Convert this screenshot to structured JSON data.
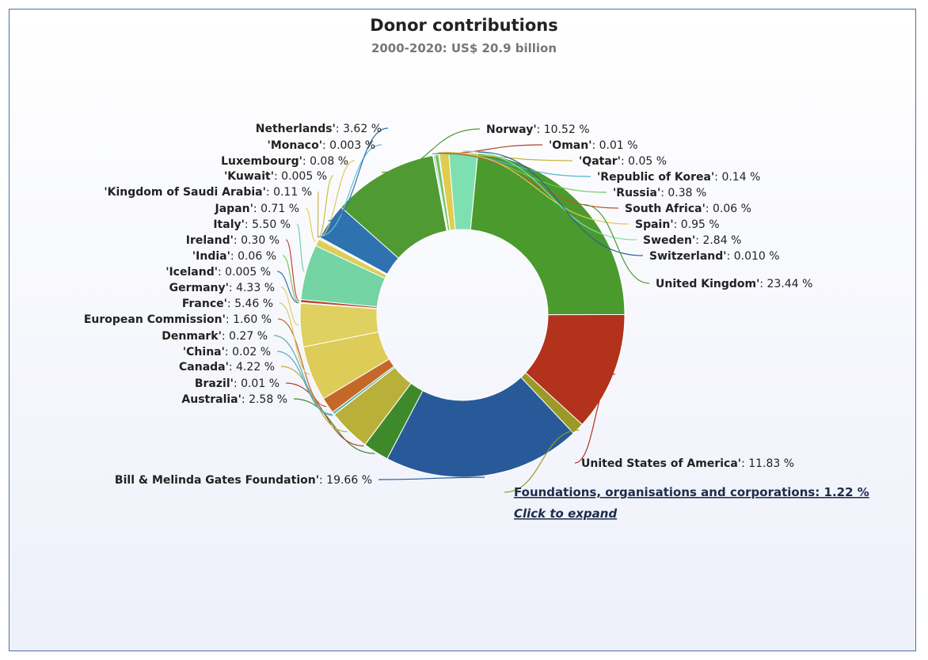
{
  "chart_data": {
    "type": "pie",
    "variant": "donut",
    "title": "Donor contributions",
    "subtitle": "2000-2020: US$ 20.9 billion",
    "unit": "%",
    "slices": [
      {
        "name": "Norway'",
        "value": 10.52,
        "value_text": "10.52 %",
        "color": "#4f9a32"
      },
      {
        "name": "'Oman'",
        "value": 0.01,
        "value_text": "0.01 %",
        "color": "#b5402a"
      },
      {
        "name": "'Qatar'",
        "value": 0.05,
        "value_text": "0.05 %",
        "color": "#c7b440"
      },
      {
        "name": "'Republic of Korea'",
        "value": 0.14,
        "value_text": "0.14 %",
        "color": "#5fb1cf"
      },
      {
        "name": "'Russia'",
        "value": 0.38,
        "value_text": "0.38 %",
        "color": "#70c560"
      },
      {
        "name": "South Africa'",
        "value": 0.06,
        "value_text": "0.06 %",
        "color": "#c2502e"
      },
      {
        "name": "Spain'",
        "value": 0.95,
        "value_text": "0.95 %",
        "color": "#e0cc50"
      },
      {
        "name": "Sweden'",
        "value": 2.84,
        "value_text": "2.84 %",
        "color": "#7ee0b0"
      },
      {
        "name": "Switzerland'",
        "value": 0.01,
        "value_text": "0.010 %",
        "color": "#2f5f9a"
      },
      {
        "name": "United Kingdom'",
        "value": 23.44,
        "value_text": "23.44 %",
        "color": "#4a9a2e"
      },
      {
        "name": "United States of America'",
        "value": 11.83,
        "value_text": "11.83 %",
        "color": "#b2321c"
      },
      {
        "name": "Foundations, organisations and corporations",
        "value": 1.22,
        "value_text": "1.22 %",
        "color": "#9a9a28"
      },
      {
        "name": "Bill & Melinda Gates Foundation'",
        "value": 19.66,
        "value_text": "19.66 %",
        "color": "#285a9a"
      },
      {
        "name": "Australia'",
        "value": 2.58,
        "value_text": "2.58 %",
        "color": "#3e8a2a"
      },
      {
        "name": "Brazil'",
        "value": 0.01,
        "value_text": "0.01 %",
        "color": "#b8402c"
      },
      {
        "name": "Canada'",
        "value": 4.22,
        "value_text": "4.22 %",
        "color": "#b8b038"
      },
      {
        "name": "'China'",
        "value": 0.02,
        "value_text": "0.02 %",
        "color": "#5aa8d0"
      },
      {
        "name": "Denmark'",
        "value": 0.27,
        "value_text": "0.27 %",
        "color": "#5cb0a8"
      },
      {
        "name": "European Commission'",
        "value": 1.6,
        "value_text": "1.60 %",
        "color": "#c4682a"
      },
      {
        "name": "France'",
        "value": 5.46,
        "value_text": "5.46 %",
        "color": "#ddcc58"
      },
      {
        "name": "Germany'",
        "value": 4.33,
        "value_text": "4.33 %",
        "color": "#dfd060"
      },
      {
        "name": "'Iceland'",
        "value": 0.005,
        "value_text": "0.005 %",
        "color": "#3a70a8"
      },
      {
        "name": "'India'",
        "value": 0.06,
        "value_text": "0.06 %",
        "color": "#7ac864"
      },
      {
        "name": "Ireland'",
        "value": 0.3,
        "value_text": "0.30 %",
        "color": "#b84a30"
      },
      {
        "name": "Italy'",
        "value": 5.5,
        "value_text": "5.50 %",
        "color": "#74d4a4"
      },
      {
        "name": "Japan'",
        "value": 0.71,
        "value_text": "0.71 %",
        "color": "#dccf58"
      },
      {
        "name": "'Kingdom of Saudi Arabia'",
        "value": 0.11,
        "value_text": "0.11 %",
        "color": "#c9b64a"
      },
      {
        "name": "'Kuwait'",
        "value": 0.005,
        "value_text": "0.005 %",
        "color": "#c6c040"
      },
      {
        "name": "Luxembourg'",
        "value": 0.08,
        "value_text": "0.08 %",
        "color": "#e0c858"
      },
      {
        "name": "'Monaco'",
        "value": 0.003,
        "value_text": "0.003 %",
        "color": "#64c0d8"
      },
      {
        "name": "Netherlands'",
        "value": 3.62,
        "value_text": "3.62 %",
        "color": "#2e72b0"
      }
    ],
    "expand_link": {
      "text": "Foundations, organisations and corporations: 1.22 %",
      "sub": "Click to expand"
    }
  }
}
